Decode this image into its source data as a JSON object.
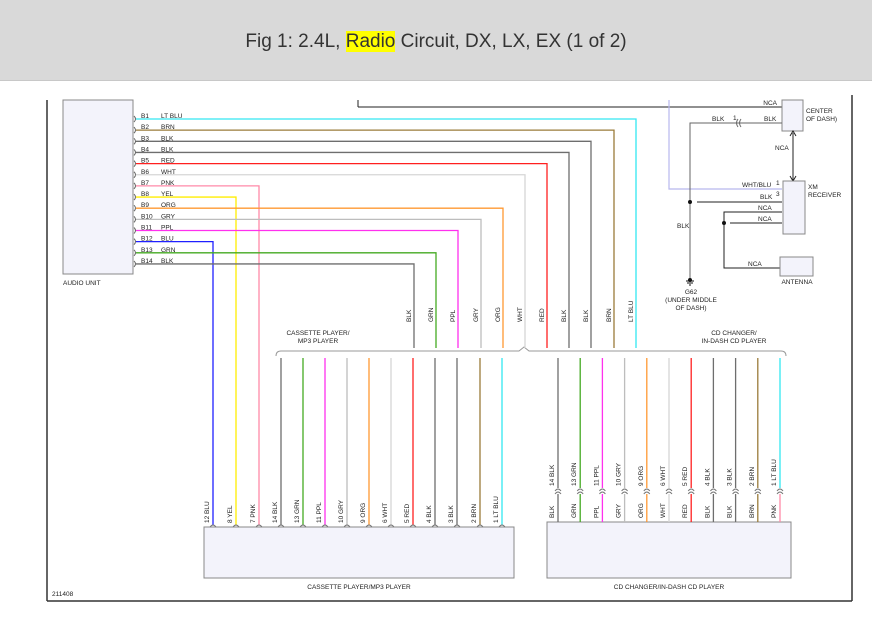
{
  "header": {
    "title_pre": "Fig 1: 2.4L, ",
    "title_highlight": "Radio",
    "title_post": " Circuit, DX, LX, EX (1 of 2)",
    "highlight_color": "#ffff00"
  },
  "colors": {
    "LT BLU": "#33e8f2",
    "BRN": "#9a7b3a",
    "BLK": "#6e6e6e",
    "RED": "#ff2020",
    "WHT": "#d6d6d6",
    "PNK": "#ff8aa8",
    "YEL": "#ffee00",
    "ORG": "#ff9933",
    "GRY": "#bdbdbd",
    "PPL": "#ff30ee",
    "BLU": "#2020ff",
    "GRN": "#44aa22",
    "WHT/BLU": "#b8b8ee"
  },
  "audio_unit": {
    "label": "AUDIO UNIT",
    "pins": [
      {
        "pin": "B1",
        "color": "LT BLU"
      },
      {
        "pin": "B2",
        "color": "BRN"
      },
      {
        "pin": "B3",
        "color": "BLK"
      },
      {
        "pin": "B4",
        "color": "BLK"
      },
      {
        "pin": "B5",
        "color": "RED"
      },
      {
        "pin": "B6",
        "color": "WHT"
      },
      {
        "pin": "B7",
        "color": "PNK"
      },
      {
        "pin": "B8",
        "color": "YEL"
      },
      {
        "pin": "B9",
        "color": "ORG"
      },
      {
        "pin": "B10",
        "color": "GRY"
      },
      {
        "pin": "B11",
        "color": "PPL"
      },
      {
        "pin": "B12",
        "color": "BLU"
      },
      {
        "pin": "B13",
        "color": "GRN"
      },
      {
        "pin": "B14",
        "color": "BLK"
      }
    ]
  },
  "branch_labels": {
    "cassette": [
      "CASSETTE PLAYER/",
      "MP3 PLAYER"
    ],
    "cd": [
      "CD CHANGER/",
      "IN-DASH CD PLAYER"
    ]
  },
  "cassette": {
    "label": "CASSETTE PLAYER/MP3 PLAYER",
    "pins": [
      {
        "pin": "12",
        "color": "BLU"
      },
      {
        "pin": "8",
        "color": "YEL"
      },
      {
        "pin": "7",
        "color": "PNK"
      },
      {
        "pin": "14",
        "color": "BLK"
      },
      {
        "pin": "13",
        "color": "GRN"
      },
      {
        "pin": "11",
        "color": "PPL"
      },
      {
        "pin": "10",
        "color": "GRY"
      },
      {
        "pin": "9",
        "color": "ORG"
      },
      {
        "pin": "6",
        "color": "WHT"
      },
      {
        "pin": "5",
        "color": "RED"
      },
      {
        "pin": "4",
        "color": "BLK"
      },
      {
        "pin": "3",
        "color": "BLK"
      },
      {
        "pin": "2",
        "color": "BRN"
      },
      {
        "pin": "1",
        "color": "LT BLU"
      }
    ]
  },
  "cd_changer": {
    "label": "CD CHANGER/IN-DASH CD PLAYER",
    "pins": [
      {
        "pin": "14",
        "color": "BLK",
        "lower": "BLK"
      },
      {
        "pin": "13",
        "color": "GRN",
        "lower": "GRN"
      },
      {
        "pin": "11",
        "color": "PPL",
        "lower": "PPL"
      },
      {
        "pin": "10",
        "color": "GRY",
        "lower": "GRY"
      },
      {
        "pin": "9",
        "color": "ORG",
        "lower": "ORG"
      },
      {
        "pin": "6",
        "color": "WHT",
        "lower": "WHT"
      },
      {
        "pin": "5",
        "color": "RED",
        "lower": "RED"
      },
      {
        "pin": "4",
        "color": "BLK",
        "lower": "BLK"
      },
      {
        "pin": "3",
        "color": "BLK",
        "lower": "BLK"
      },
      {
        "pin": "2",
        "color": "BRN",
        "lower": "BRN"
      },
      {
        "pin": "1",
        "color": "LT BLU",
        "lower": "PNK"
      }
    ]
  },
  "right": {
    "center_dash": [
      "CENTER",
      "OF DASH)"
    ],
    "nca": "NCA",
    "blk": "BLK",
    "pin1": "1",
    "pin3": "3",
    "wht_blu": "WHT/BLU",
    "xm": [
      "XM",
      "RECEIVER"
    ],
    "antenna": "ANTENNA",
    "ground": [
      "G62",
      "(UNDER MIDDLE",
      "OF DASH)"
    ]
  },
  "figure_id": "211408"
}
